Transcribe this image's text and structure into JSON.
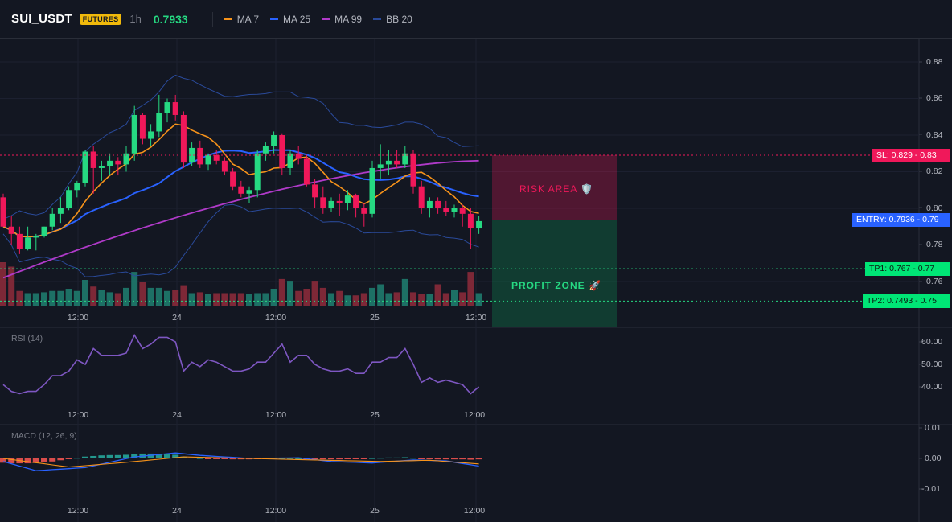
{
  "header": {
    "symbol": "SUI_USDT",
    "badge": "FUTURES",
    "timeframe": "1h",
    "last_price": "0.7933",
    "legend": [
      {
        "label": "MA 7",
        "color": "#f7931a"
      },
      {
        "label": "MA 25",
        "color": "#2962ff"
      },
      {
        "label": "MA 99",
        "color": "#b03ac9"
      },
      {
        "label": "BB 20",
        "color": "#2a4a9a"
      }
    ]
  },
  "price_axis": [
    "0.88",
    "0.86",
    "0.84",
    "0.82",
    "0.80",
    "0.78",
    "0.76"
  ],
  "time_axis": [
    "12:00",
    "24",
    "12:00",
    "25",
    "12:00"
  ],
  "trade": {
    "sl_label": "SL: 0.829 - 0.83",
    "entry_label": "ENTRY: 0.7936 - 0.79",
    "tp1_label": "TP1: 0.767 - 0.77",
    "tp2_label": "TP2: 0.7493 - 0.75",
    "risk_text": "RISK AREA 🛡️",
    "profit_text": "PROFIT ZONE 🚀",
    "sl": 0.829,
    "entry": 0.7936,
    "tp1": 0.767,
    "tp2": 0.7493
  },
  "rsi": {
    "label": "RSI (14)",
    "axis": [
      "60.00",
      "50.00",
      "40.00"
    ],
    "values": [
      41,
      38,
      37,
      38,
      38,
      41,
      45,
      45,
      47,
      52,
      50,
      57,
      54,
      54,
      54,
      55,
      63,
      57,
      59,
      62,
      62,
      60,
      47,
      51,
      49,
      52,
      51,
      49,
      47,
      47,
      48,
      51,
      51,
      55,
      59,
      51,
      54,
      54,
      50,
      48,
      47,
      47,
      48,
      46,
      46,
      51,
      51,
      53,
      53,
      57,
      50,
      42,
      44,
      42,
      43,
      42,
      41,
      37,
      40
    ]
  },
  "macd": {
    "label": "MACD (12, 26, 9)",
    "axis": [
      "0.01",
      "0.00",
      "-0.01"
    ]
  },
  "chart_data": {
    "type": "candlestick",
    "title": "",
    "timeframe": "1h",
    "price_range": [
      0.745,
      0.895
    ],
    "levels": {
      "stop_loss": 0.829,
      "entry": 0.7936,
      "tp1": 0.767,
      "tp2": 0.7493
    },
    "candles": [
      [
        0.806,
        0.808,
        0.79,
        0.79
      ],
      [
        0.79,
        0.796,
        0.78,
        0.786
      ],
      [
        0.786,
        0.79,
        0.775,
        0.778
      ],
      [
        0.778,
        0.79,
        0.777,
        0.784
      ],
      [
        0.784,
        0.786,
        0.777,
        0.785
      ],
      [
        0.785,
        0.79,
        0.784,
        0.79
      ],
      [
        0.79,
        0.8,
        0.788,
        0.797
      ],
      [
        0.797,
        0.806,
        0.792,
        0.8
      ],
      [
        0.8,
        0.812,
        0.799,
        0.81
      ],
      [
        0.81,
        0.815,
        0.806,
        0.814
      ],
      [
        0.814,
        0.832,
        0.812,
        0.831
      ],
      [
        0.831,
        0.834,
        0.808,
        0.822
      ],
      [
        0.822,
        0.826,
        0.815,
        0.823
      ],
      [
        0.823,
        0.83,
        0.818,
        0.826
      ],
      [
        0.826,
        0.828,
        0.818,
        0.824
      ],
      [
        0.824,
        0.834,
        0.82,
        0.83
      ],
      [
        0.83,
        0.856,
        0.826,
        0.851
      ],
      [
        0.851,
        0.852,
        0.835,
        0.838
      ],
      [
        0.838,
        0.846,
        0.834,
        0.842
      ],
      [
        0.842,
        0.862,
        0.839,
        0.852
      ],
      [
        0.852,
        0.86,
        0.847,
        0.858
      ],
      [
        0.858,
        0.862,
        0.848,
        0.851
      ],
      [
        0.851,
        0.853,
        0.822,
        0.825
      ],
      [
        0.825,
        0.836,
        0.823,
        0.833
      ],
      [
        0.833,
        0.837,
        0.822,
        0.824
      ],
      [
        0.824,
        0.83,
        0.821,
        0.829
      ],
      [
        0.829,
        0.832,
        0.824,
        0.826
      ],
      [
        0.826,
        0.828,
        0.818,
        0.82
      ],
      [
        0.82,
        0.822,
        0.81,
        0.812
      ],
      [
        0.812,
        0.815,
        0.806,
        0.808
      ],
      [
        0.808,
        0.812,
        0.803,
        0.81
      ],
      [
        0.81,
        0.832,
        0.806,
        0.83
      ],
      [
        0.83,
        0.836,
        0.826,
        0.834
      ],
      [
        0.834,
        0.842,
        0.83,
        0.84
      ],
      [
        0.84,
        0.841,
        0.818,
        0.822
      ],
      [
        0.822,
        0.832,
        0.818,
        0.83
      ],
      [
        0.83,
        0.834,
        0.824,
        0.827
      ],
      [
        0.827,
        0.829,
        0.812,
        0.813
      ],
      [
        0.813,
        0.816,
        0.8,
        0.806
      ],
      [
        0.806,
        0.812,
        0.797,
        0.8
      ],
      [
        0.8,
        0.806,
        0.798,
        0.804
      ],
      [
        0.804,
        0.808,
        0.796,
        0.803
      ],
      [
        0.803,
        0.81,
        0.799,
        0.807
      ],
      [
        0.807,
        0.808,
        0.795,
        0.8
      ],
      [
        0.8,
        0.803,
        0.79,
        0.797
      ],
      [
        0.797,
        0.826,
        0.795,
        0.822
      ],
      [
        0.822,
        0.835,
        0.816,
        0.824
      ],
      [
        0.824,
        0.832,
        0.818,
        0.826
      ],
      [
        0.826,
        0.832,
        0.822,
        0.824
      ],
      [
        0.824,
        0.834,
        0.822,
        0.83
      ],
      [
        0.83,
        0.832,
        0.808,
        0.812
      ],
      [
        0.812,
        0.815,
        0.797,
        0.8
      ],
      [
        0.8,
        0.806,
        0.795,
        0.804
      ],
      [
        0.804,
        0.806,
        0.797,
        0.8
      ],
      [
        0.8,
        0.804,
        0.796,
        0.798
      ],
      [
        0.798,
        0.802,
        0.795,
        0.8
      ],
      [
        0.8,
        0.802,
        0.79,
        0.797
      ],
      [
        0.797,
        0.8,
        0.778,
        0.789
      ],
      [
        0.789,
        0.796,
        0.786,
        0.793
      ]
    ],
    "volume_scale": [
      1,
      0.9,
      0.35,
      0.3,
      0.3,
      0.32,
      0.35,
      0.35,
      0.4,
      0.35,
      0.6,
      0.45,
      0.38,
      0.32,
      0.3,
      0.42,
      0.78,
      0.55,
      0.42,
      0.42,
      0.35,
      0.38,
      0.48,
      0.3,
      0.32,
      0.28,
      0.3,
      0.3,
      0.3,
      0.3,
      0.28,
      0.3,
      0.3,
      0.4,
      0.62,
      0.58,
      0.35,
      0.4,
      0.58,
      0.42,
      0.3,
      0.35,
      0.25,
      0.25,
      0.3,
      0.42,
      0.5,
      0.3,
      0.32,
      0.62,
      0.32,
      0.28,
      0.28,
      0.5,
      0.3,
      0.38,
      0.32,
      0.78,
      0.3
    ]
  }
}
